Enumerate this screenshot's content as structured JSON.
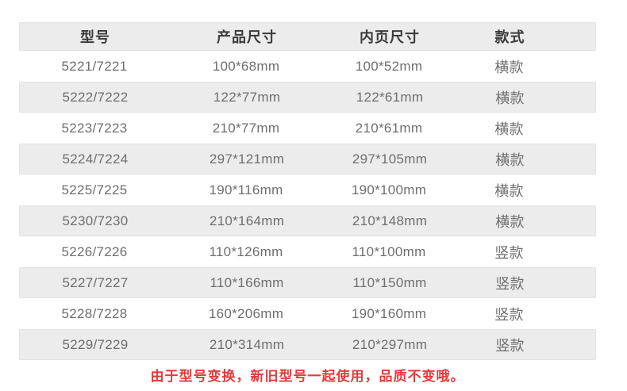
{
  "table": {
    "headers": [
      "型号",
      "产品尺寸",
      "内页尺寸",
      "款式"
    ],
    "rows": [
      {
        "model": "5221/7221",
        "product_size": "100*68mm",
        "inner_size": "100*52mm",
        "style": "横款"
      },
      {
        "model": "5222/7222",
        "product_size": "122*77mm",
        "inner_size": "122*61mm",
        "style": "横款"
      },
      {
        "model": "5223/7223",
        "product_size": "210*77mm",
        "inner_size": "210*61mm",
        "style": "横款"
      },
      {
        "model": "5224/7224",
        "product_size": "297*121mm",
        "inner_size": "297*105mm",
        "style": "横款"
      },
      {
        "model": "5225/7225",
        "product_size": "190*116mm",
        "inner_size": "190*100mm",
        "style": "横款"
      },
      {
        "model": "5230/7230",
        "product_size": "210*164mm",
        "inner_size": "210*148mm",
        "style": "横款"
      },
      {
        "model": "5226/7226",
        "product_size": "110*126mm",
        "inner_size": "110*100mm",
        "style": "竖款"
      },
      {
        "model": "5227/7227",
        "product_size": "110*166mm",
        "inner_size": "110*150mm",
        "style": "竖款"
      },
      {
        "model": "5228/7228",
        "product_size": "160*206mm",
        "inner_size": "190*160mm",
        "style": "竖款"
      },
      {
        "model": "5229/7229",
        "product_size": "210*314mm",
        "inner_size": "210*297mm",
        "style": "竖款"
      }
    ]
  },
  "note": "由于型号变换，新旧型号一起使用，品质不变哦。",
  "colors": {
    "header_bg": "#ececec",
    "row_alt_bg": "#ececec",
    "row_border": "#e2e2e2",
    "header_text": "#3b3b3b",
    "data_text": "#6e6e6e",
    "note_red": "#e23a3a"
  }
}
